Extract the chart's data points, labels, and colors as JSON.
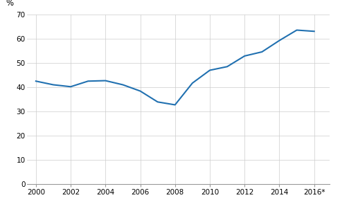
{
  "years": [
    2000,
    2001,
    2002,
    2003,
    2004,
    2005,
    2006,
    2007,
    2008,
    2009,
    2010,
    2011,
    2012,
    2013,
    2014,
    2015,
    2016
  ],
  "values": [
    42.5,
    41.0,
    40.2,
    42.5,
    42.7,
    41.0,
    38.4,
    33.9,
    32.7,
    41.7,
    47.0,
    48.5,
    52.9,
    54.6,
    59.3,
    63.6,
    63.1
  ],
  "line_color": "#2070b0",
  "line_width": 1.5,
  "ylabel": "%",
  "ylim": [
    0,
    70
  ],
  "yticks": [
    0,
    10,
    20,
    30,
    40,
    50,
    60,
    70
  ],
  "xtick_labels": [
    "2000",
    "2002",
    "2004",
    "2006",
    "2008",
    "2010",
    "2012",
    "2014",
    "2016*"
  ],
  "xtick_positions": [
    2000,
    2002,
    2004,
    2006,
    2008,
    2010,
    2012,
    2014,
    2016
  ],
  "xlim": [
    1999.5,
    2016.9
  ],
  "bg_color": "#ffffff",
  "grid_color": "#cccccc"
}
